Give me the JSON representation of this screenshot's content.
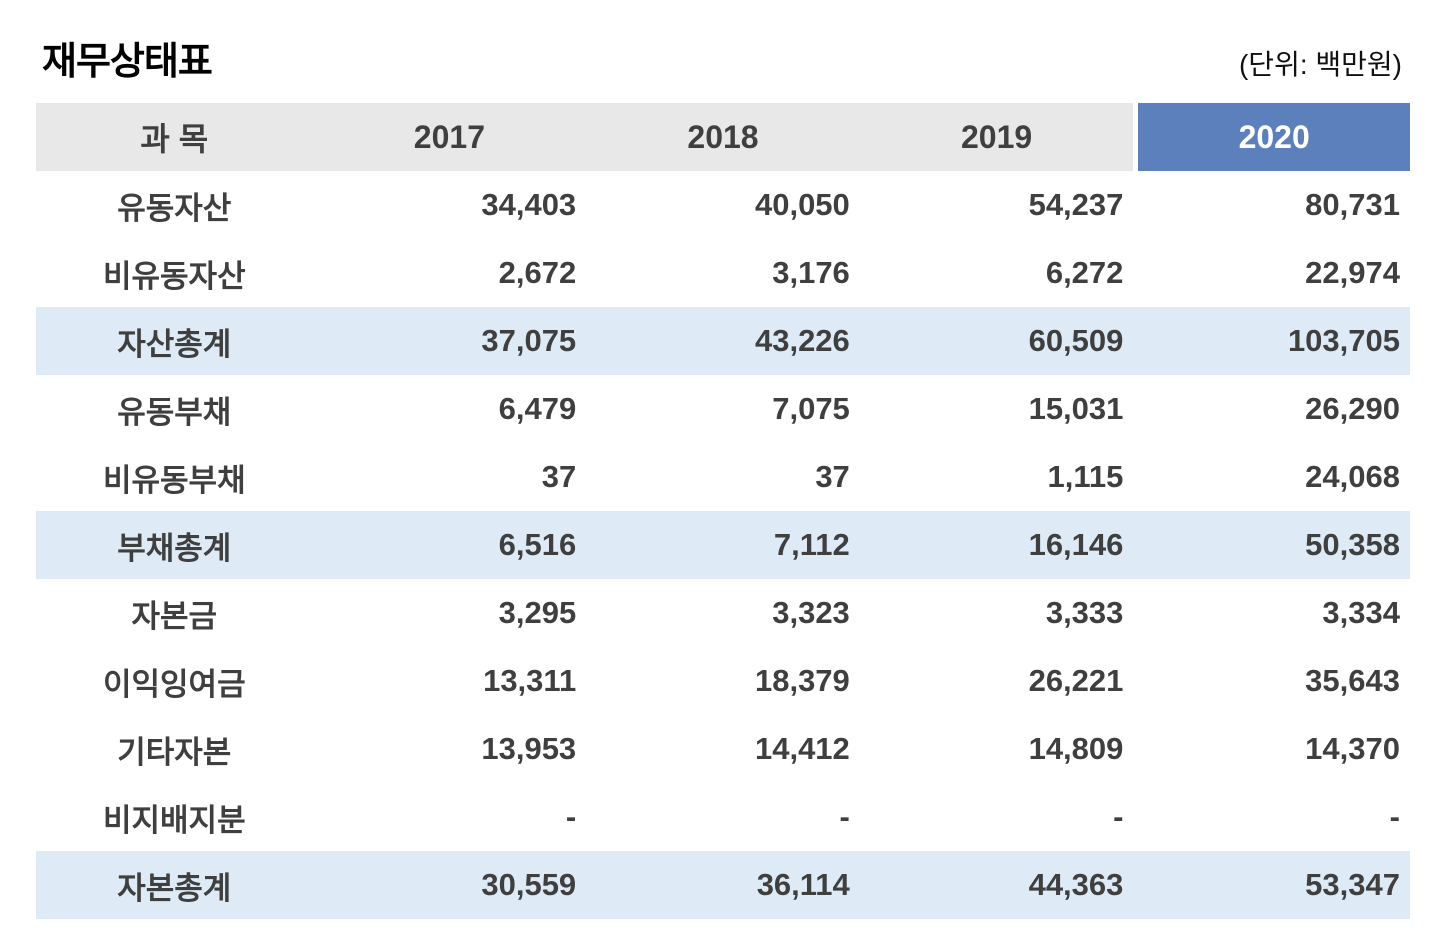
{
  "title": "재무상태표",
  "unit_note": "(단위: 백만원)",
  "table": {
    "header": [
      "과 목",
      "2017",
      "2018",
      "2019",
      "2020"
    ],
    "rows": [
      {
        "label": "유동자산",
        "values": [
          "34,403",
          "40,050",
          "54,237",
          "80,731"
        ],
        "highlight": false
      },
      {
        "label": "비유동자산",
        "values": [
          "2,672",
          "3,176",
          "6,272",
          "22,974"
        ],
        "highlight": false
      },
      {
        "label": "자산총계",
        "values": [
          "37,075",
          "43,226",
          "60,509",
          "103,705"
        ],
        "highlight": true
      },
      {
        "label": "유동부채",
        "values": [
          "6,479",
          "7,075",
          "15,031",
          "26,290"
        ],
        "highlight": false
      },
      {
        "label": "비유동부채",
        "values": [
          "37",
          "37",
          "1,115",
          "24,068"
        ],
        "highlight": false
      },
      {
        "label": "부채총계",
        "values": [
          "6,516",
          "7,112",
          "16,146",
          "50,358"
        ],
        "highlight": true
      },
      {
        "label": "자본금",
        "values": [
          "3,295",
          "3,323",
          "3,333",
          "3,334"
        ],
        "highlight": false
      },
      {
        "label": "이익잉여금",
        "values": [
          "13,311",
          "18,379",
          "26,221",
          "35,643"
        ],
        "highlight": false
      },
      {
        "label": "기타자본",
        "values": [
          "13,953",
          "14,412",
          "14,809",
          "14,370"
        ],
        "highlight": false
      },
      {
        "label": "비지배지분",
        "values": [
          "-",
          "-",
          "-",
          "-"
        ],
        "highlight": false
      },
      {
        "label": "자본총계",
        "values": [
          "30,559",
          "36,114",
          "44,363",
          "53,347"
        ],
        "highlight": true
      }
    ]
  },
  "colors": {
    "header_bg": "#e8e8e8",
    "accent_header_bg": "#5b80bb",
    "accent_header_text": "#ffffff",
    "highlight_row_bg": "#deebf7",
    "text": "#3f3f3f"
  }
}
